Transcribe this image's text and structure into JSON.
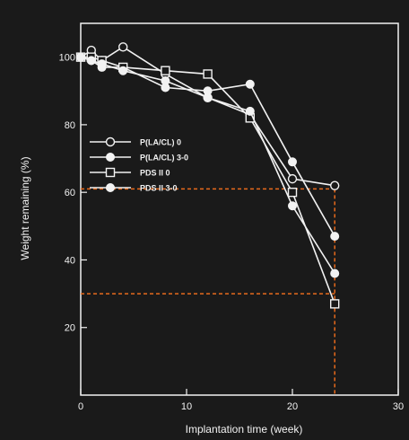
{
  "chart_data": {
    "type": "line",
    "xlabel": "Implantation time (week)",
    "ylabel": "Weight remaining (%)",
    "xlim": [
      0,
      30
    ],
    "ylim": [
      0,
      110
    ],
    "xticks": [
      0,
      10,
      20,
      30
    ],
    "yticks": [
      20,
      40,
      60,
      80,
      100
    ],
    "grid": false,
    "legend_position": "middle-left",
    "series": [
      {
        "name": "P(LA/CL) 0",
        "marker": "circle-open",
        "x": [
          0,
          1,
          2,
          4,
          8,
          12,
          16,
          20,
          24
        ],
        "y": [
          100,
          102,
          99,
          103,
          95,
          88,
          83,
          64,
          62
        ]
      },
      {
        "name": "P(LA/CL) 3-0",
        "marker": "circle-filled",
        "x": [
          0,
          1,
          2,
          4,
          8,
          12,
          16,
          20,
          24
        ],
        "y": [
          100,
          99,
          97,
          97,
          91,
          90,
          92,
          69,
          47
        ]
      },
      {
        "name": "PDS II 0",
        "marker": "square-open",
        "x": [
          0,
          1,
          2,
          4,
          8,
          12,
          16,
          20,
          24
        ],
        "y": [
          100,
          100,
          99,
          97,
          96,
          95,
          82,
          60,
          27
        ]
      },
      {
        "name": "PDS II 3-0",
        "marker": "circle-filled",
        "x": [
          0,
          1,
          2,
          4,
          8,
          12,
          16,
          20,
          24
        ],
        "y": [
          100,
          99,
          98,
          96,
          93,
          88,
          84,
          56,
          36
        ]
      }
    ],
    "reference_lines": [
      {
        "axis": "y",
        "value": 61,
        "color": "#e86a1c"
      },
      {
        "axis": "y",
        "value": 30,
        "color": "#e86a1c"
      },
      {
        "axis": "x",
        "value": 24,
        "color": "#e86a1c"
      }
    ],
    "colors": {
      "background": "#1a1a1a",
      "foreground": "#f2f2f2",
      "reference": "#e86a1c"
    }
  }
}
